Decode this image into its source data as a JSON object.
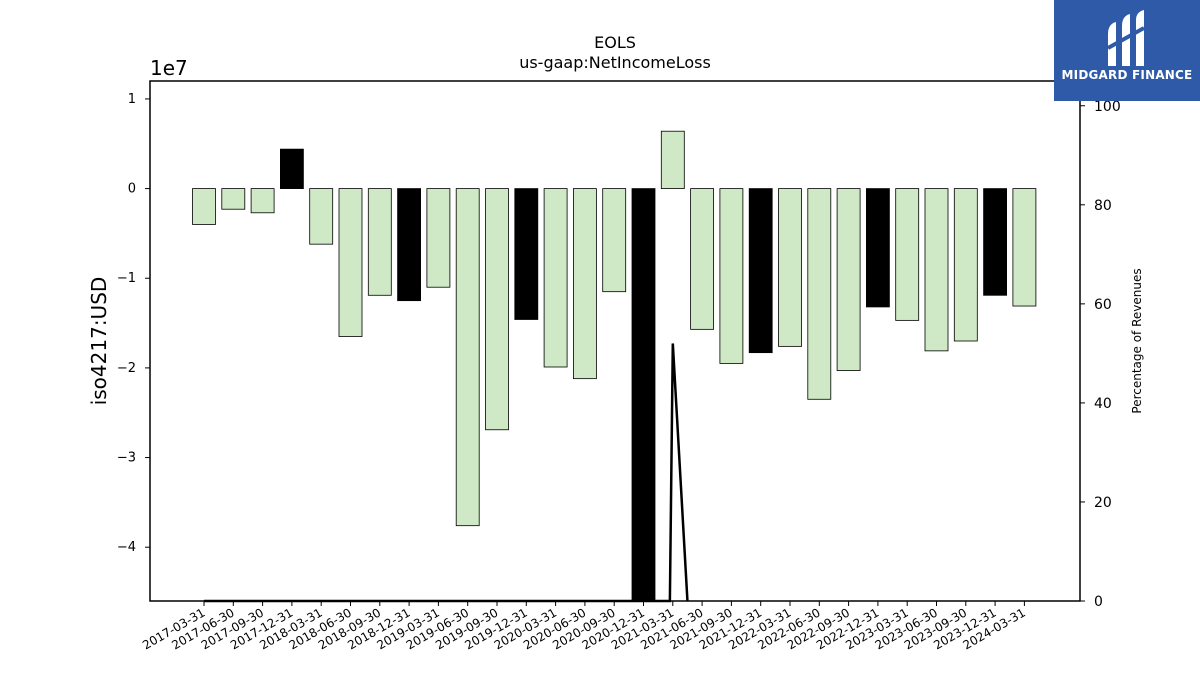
{
  "chart_data": {
    "type": "bar",
    "title": "EOLS",
    "subtitle": "us-gaap:NetIncomeLoss",
    "ylabel": "iso4217:USD",
    "y_offset_label": "1e7",
    "y2label": "Percentage of Revenues",
    "ylim": [
      -4.6,
      1.2
    ],
    "y_ticks": [
      1,
      0,
      -1,
      -2,
      -3,
      -4
    ],
    "y_tick_labels": [
      "1",
      "0",
      "−1",
      "−2",
      "−3",
      "−4"
    ],
    "y2lim": [
      0,
      105
    ],
    "y2_ticks": [
      0,
      20,
      40,
      60,
      80,
      100
    ],
    "y2_tick_labels": [
      "0",
      "20",
      "40",
      "60",
      "80",
      "100"
    ],
    "categories": [
      "2017-03-31",
      "2017-06-30",
      "2017-09-30",
      "2017-12-31",
      "2018-03-31",
      "2018-06-30",
      "2018-09-30",
      "2018-12-31",
      "2019-03-31",
      "2019-06-30",
      "2019-09-30",
      "2019-12-31",
      "2020-03-31",
      "2020-06-30",
      "2020-09-30",
      "2020-12-31",
      "2021-03-31",
      "2021-06-30",
      "2021-09-30",
      "2021-12-31",
      "2022-03-31",
      "2022-06-30",
      "2022-09-30",
      "2022-12-31",
      "2023-03-31",
      "2023-06-30",
      "2023-09-30",
      "2023-12-31",
      "2024-03-31"
    ],
    "values": [
      -0.4,
      -0.23,
      -0.27,
      0.44,
      -0.62,
      -1.65,
      -1.19,
      -1.25,
      -1.1,
      -3.76,
      -2.69,
      -1.46,
      -1.99,
      -2.12,
      -1.15,
      -4.6,
      0.64,
      -1.57,
      -1.95,
      -1.83,
      -1.76,
      -2.35,
      -2.03,
      -1.32,
      -1.47,
      -1.81,
      -1.7,
      -1.19,
      -1.31
    ],
    "bar_colors": [
      "#cfe8c6",
      "#cfe8c6",
      "#cfe8c6",
      "#000000",
      "#cfe8c6",
      "#cfe8c6",
      "#cfe8c6",
      "#000000",
      "#cfe8c6",
      "#cfe8c6",
      "#cfe8c6",
      "#000000",
      "#cfe8c6",
      "#cfe8c6",
      "#cfe8c6",
      "#000000",
      "#cfe8c6",
      "#cfe8c6",
      "#cfe8c6",
      "#000000",
      "#cfe8c6",
      "#cfe8c6",
      "#cfe8c6",
      "#000000",
      "#cfe8c6",
      "#cfe8c6",
      "#cfe8c6",
      "#000000",
      "#cfe8c6"
    ],
    "line_series": {
      "axis": "y2",
      "color": "#000000",
      "x": [
        0,
        1,
        2,
        3,
        4,
        5,
        6,
        7,
        8,
        15.9,
        16,
        16.5
      ],
      "y": [
        0,
        0,
        0,
        0,
        0,
        0,
        0,
        0,
        0,
        0,
        52,
        0
      ]
    },
    "grid": false,
    "legend": "none"
  },
  "logo": {
    "text": "MIDGARD FINANCE",
    "background": "#2e5aa8"
  }
}
